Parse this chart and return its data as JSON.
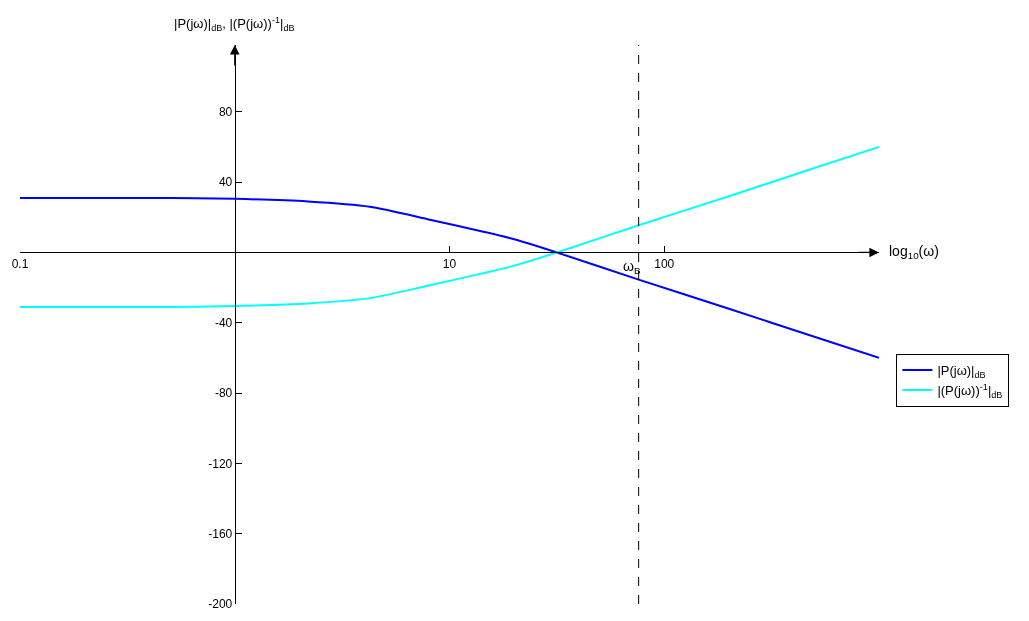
{
  "chart_data": {
    "type": "line",
    "xlabel": "log$_{10}$(ω)",
    "ylabel": "|P(jω)|$_{dB}$, |(P(jω))$^{-1}$|$_{dB}$",
    "x": [
      0.1,
      0.5,
      1,
      2.19,
      4.25,
      8.2,
      13.9,
      20,
      31.6,
      76,
      200,
      500,
      1000
    ],
    "series": [
      {
        "name": "|P(jω)|$_{dB}$",
        "color": "#0000ff",
        "values": [
          31,
          31,
          30.5,
          29,
          26,
          18.5,
          12.2,
          7.5,
          0,
          -15.5,
          -32,
          -48,
          -60
        ]
      },
      {
        "name": "|(P(jω))$^{-1}$|$_{dB}$",
        "color": "#00ffff",
        "values": [
          -31,
          -31,
          -30.5,
          -29,
          -26,
          -18.5,
          -12.2,
          -7.5,
          0,
          15.5,
          32,
          48,
          60
        ]
      }
    ],
    "log": "x",
    "xlim": [
      0.1,
      1000
    ],
    "xticks": [
      {
        "value": 0.1,
        "label": "0.1"
      },
      10,
      100
    ],
    "ylim": [
      -200,
      118
    ],
    "yticks": [
      80,
      40,
      -40,
      -80,
      -120,
      -160,
      -200
    ],
    "ref_lines": [
      {
        "axis": "x",
        "value": 76,
        "label": "ω$_{B}$",
        "line_style": "dashed",
        "color": "#000000"
      }
    ],
    "grid": false,
    "legend": "right",
    "marker": "none",
    "line_style": "solid"
  }
}
